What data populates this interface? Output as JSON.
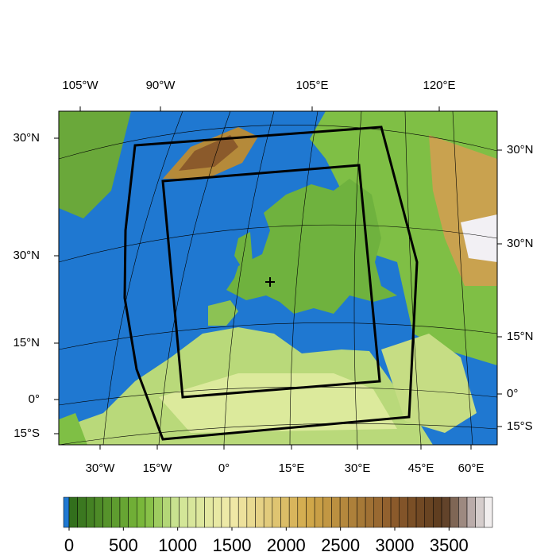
{
  "map": {
    "labels": {
      "top": [
        "105°W",
        "90°W",
        "105°E",
        "120°E"
      ],
      "left": [
        "30°N",
        "30°N",
        "15°N",
        "0°",
        "15°S"
      ],
      "right": [
        "30°N",
        "30°N",
        "15°N",
        "0°",
        "15°S"
      ],
      "bottom": [
        "30°W",
        "15°W",
        "0°",
        "15°E",
        "30°E",
        "45°E",
        "60°E"
      ]
    },
    "ocean_color": "#1f78d1"
  },
  "colorbar": {
    "lim": [
      0,
      3900
    ],
    "ticks": [
      0,
      500,
      1000,
      1500,
      2000,
      2500,
      3000,
      3500
    ],
    "segments": 50,
    "under_color": "#1f78d1",
    "color_stops": [
      {
        "value": 0,
        "color": "#2e6b1a"
      },
      {
        "value": 700,
        "color": "#7dbb3c"
      },
      {
        "value": 1000,
        "color": "#cfe596"
      },
      {
        "value": 1500,
        "color": "#f1eaa9"
      },
      {
        "value": 2200,
        "color": "#d2a94a"
      },
      {
        "value": 3000,
        "color": "#8b5a2b"
      },
      {
        "value": 3450,
        "color": "#5a3a1e"
      },
      {
        "value": 3700,
        "color": "#b8aaa8"
      },
      {
        "value": 3900,
        "color": "#ffffff"
      }
    ]
  }
}
